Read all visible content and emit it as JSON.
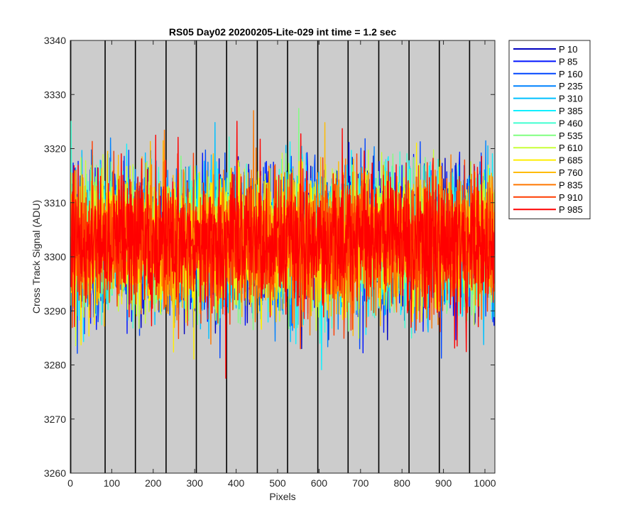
{
  "chart_data": {
    "type": "line",
    "title": "RS05 Day02 20200205-Lite-029 int time = 1.2 sec",
    "xlabel": "Pixels",
    "ylabel": "Cross Track Signal (ADU)",
    "xlim": [
      0,
      1024
    ],
    "ylim": [
      3260,
      3340
    ],
    "x_ticks": [
      0,
      100,
      200,
      300,
      400,
      500,
      600,
      700,
      800,
      900,
      1000
    ],
    "y_ticks": [
      3260,
      3270,
      3280,
      3290,
      3300,
      3310,
      3320,
      3330,
      3340
    ],
    "x_tick_labels": [
      "0",
      "100",
      "200",
      "300",
      "400",
      "500",
      "600",
      "700",
      "800",
      "900",
      "1000"
    ],
    "y_tick_labels": [
      "3260",
      "3270",
      "3280",
      "3290",
      "3300",
      "3310",
      "3320",
      "3330",
      "3340"
    ],
    "vertical_lines_x": [
      1,
      84,
      157,
      231,
      304,
      377,
      451,
      524,
      597,
      670,
      744,
      817,
      890,
      963
    ],
    "background_color": "#cccccc",
    "grid": false,
    "legend_position": "outside-top-right",
    "series_mean": 3303,
    "series_noise_range": [
      3269,
      3334
    ],
    "series": [
      {
        "name": "P 10",
        "color": "#0000bf"
      },
      {
        "name": "P 85",
        "color": "#0014ff"
      },
      {
        "name": "P 160",
        "color": "#0046ff"
      },
      {
        "name": "P 235",
        "color": "#0082ff"
      },
      {
        "name": "P 310",
        "color": "#00c0ff"
      },
      {
        "name": "P 385",
        "color": "#10f0ff"
      },
      {
        "name": "P 460",
        "color": "#40ffd0"
      },
      {
        "name": "P 535",
        "color": "#80ff80"
      },
      {
        "name": "P 610",
        "color": "#c8ff38"
      },
      {
        "name": "P 685",
        "color": "#ffee00"
      },
      {
        "name": "P 760",
        "color": "#ffbb00"
      },
      {
        "name": "P 835",
        "color": "#ff7800"
      },
      {
        "name": "P 910",
        "color": "#ff3c00"
      },
      {
        "name": "P 985",
        "color": "#ff0000"
      }
    ]
  }
}
